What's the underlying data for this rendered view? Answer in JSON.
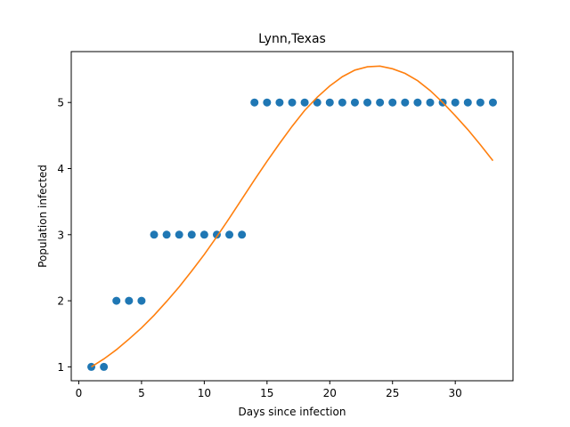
{
  "chart_data": {
    "type": "scatter",
    "title": "Lynn,Texas",
    "xlabel": "Days since infection",
    "ylabel": "Population infected",
    "xlim": [
      -0.6,
      34.6
    ],
    "ylim": [
      0.79,
      5.77
    ],
    "xticks": [
      0,
      5,
      10,
      15,
      20,
      25,
      30
    ],
    "yticks": [
      1,
      2,
      3,
      4,
      5
    ],
    "grid": false,
    "series": [
      {
        "kind": "scatter",
        "color": "#1f77b4",
        "x": [
          1,
          2,
          3,
          4,
          5,
          6,
          7,
          8,
          9,
          10,
          11,
          12,
          13,
          14,
          15,
          16,
          17,
          18,
          19,
          20,
          21,
          22,
          23,
          24,
          25,
          26,
          27,
          28,
          29,
          30,
          31,
          32,
          33
        ],
        "y": [
          1,
          1,
          2,
          2,
          2,
          3,
          3,
          3,
          3,
          3,
          3,
          3,
          3,
          5,
          5,
          5,
          5,
          5,
          5,
          5,
          5,
          5,
          5,
          5,
          5,
          5,
          5,
          5,
          5,
          5,
          5,
          5,
          5
        ]
      },
      {
        "kind": "line",
        "color": "#ff7f0e",
        "x": [
          1,
          2,
          3,
          4,
          5,
          6,
          7,
          8,
          9,
          10,
          11,
          12,
          13,
          14,
          15,
          16,
          17,
          18,
          19,
          20,
          21,
          22,
          23,
          24,
          25,
          26,
          27,
          28,
          29,
          30,
          31,
          32,
          33
        ],
        "y": [
          1.0,
          1.12,
          1.26,
          1.42,
          1.59,
          1.78,
          1.99,
          2.21,
          2.45,
          2.7,
          2.97,
          3.25,
          3.54,
          3.83,
          4.11,
          4.38,
          4.64,
          4.88,
          5.08,
          5.25,
          5.39,
          5.49,
          5.54,
          5.55,
          5.51,
          5.44,
          5.33,
          5.18,
          5.0,
          4.8,
          4.59,
          4.36,
          4.12
        ]
      }
    ]
  }
}
